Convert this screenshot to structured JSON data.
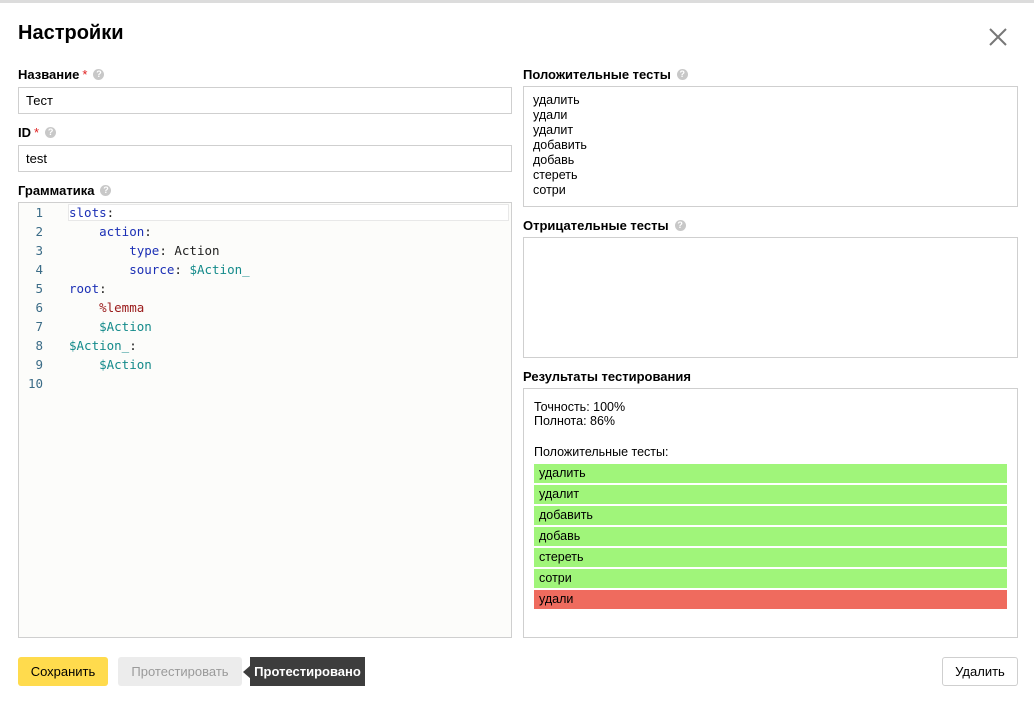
{
  "dialog": {
    "title": "Настройки",
    "close_icon": "close-icon"
  },
  "name_field": {
    "label": "Название",
    "required": "*",
    "value": "Тест"
  },
  "id_field": {
    "label": "ID",
    "required": "*",
    "value": "test"
  },
  "grammar": {
    "label": "Грамматика",
    "lines": [
      {
        "n": "1",
        "parts": [
          {
            "t": "slots",
            "c": "k"
          },
          {
            "t": ":",
            "c": "p"
          }
        ]
      },
      {
        "n": "2",
        "parts": [
          {
            "t": "    ",
            "c": "p"
          },
          {
            "t": "action",
            "c": "k"
          },
          {
            "t": ":",
            "c": "p"
          }
        ]
      },
      {
        "n": "3",
        "parts": [
          {
            "t": "        ",
            "c": "p"
          },
          {
            "t": "type",
            "c": "k"
          },
          {
            "t": ": Action",
            "c": "p"
          }
        ]
      },
      {
        "n": "4",
        "parts": [
          {
            "t": "        ",
            "c": "p"
          },
          {
            "t": "source",
            "c": "k"
          },
          {
            "t": ": ",
            "c": "p"
          },
          {
            "t": "$Action_",
            "c": "v"
          }
        ]
      },
      {
        "n": "5",
        "parts": [
          {
            "t": "root",
            "c": "k"
          },
          {
            "t": ":",
            "c": "p"
          }
        ]
      },
      {
        "n": "6",
        "parts": [
          {
            "t": "    ",
            "c": "p"
          },
          {
            "t": "%lemma",
            "c": "m"
          }
        ]
      },
      {
        "n": "7",
        "parts": [
          {
            "t": "    ",
            "c": "p"
          },
          {
            "t": "$Action",
            "c": "v"
          }
        ]
      },
      {
        "n": "8",
        "parts": [
          {
            "t": "$Action_",
            "c": "v"
          },
          {
            "t": ":",
            "c": "p"
          }
        ]
      },
      {
        "n": "9",
        "parts": [
          {
            "t": "    ",
            "c": "p"
          },
          {
            "t": "$Action",
            "c": "v"
          }
        ]
      },
      {
        "n": "10",
        "parts": []
      }
    ]
  },
  "positive_tests": {
    "label": "Положительные тесты",
    "items": [
      "удалить",
      "удали",
      "удалит",
      "добавить",
      "добавь",
      "стереть",
      "сотри"
    ]
  },
  "negative_tests": {
    "label": "Отрицательные тесты",
    "items": []
  },
  "results": {
    "label": "Результаты тестирования",
    "precision": "Точность: 100%",
    "recall": "Полнота: 86%",
    "positive_header": "Положительные тесты:",
    "rows": [
      {
        "text": "удалить",
        "status": "pass"
      },
      {
        "text": "удалит",
        "status": "pass"
      },
      {
        "text": "добавить",
        "status": "pass"
      },
      {
        "text": "добавь",
        "status": "pass"
      },
      {
        "text": "стереть",
        "status": "pass"
      },
      {
        "text": "сотри",
        "status": "pass"
      },
      {
        "text": "удали",
        "status": "fail"
      }
    ],
    "colors": {
      "pass": "#a0f57a",
      "fail": "#ef6b5e"
    }
  },
  "footer": {
    "save_label": "Сохранить",
    "test_label": "Протестировать",
    "tested_label": "Протестировано",
    "delete_label": "Удалить"
  }
}
